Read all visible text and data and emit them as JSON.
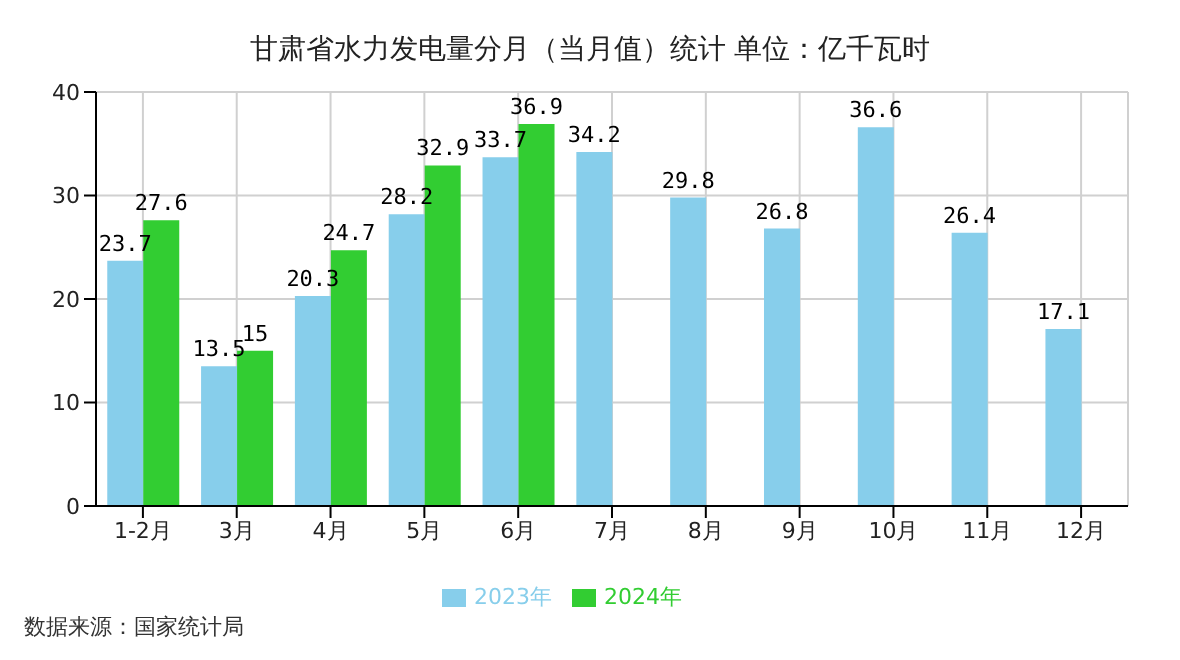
{
  "chart_data": {
    "type": "bar",
    "title": "甘肃省水力发电量分月（当月值）统计 单位：亿千瓦时",
    "categories": [
      "1-2月",
      "3月",
      "4月",
      "5月",
      "6月",
      "7月",
      "8月",
      "9月",
      "10月",
      "11月",
      "12月"
    ],
    "series": [
      {
        "name": "2023年",
        "color": "#87ceeb",
        "values": [
          23.7,
          13.5,
          20.3,
          28.2,
          33.7,
          34.2,
          29.8,
          26.8,
          36.6,
          26.4,
          17.1
        ]
      },
      {
        "name": "2024年",
        "color": "#32cd32",
        "values": [
          27.6,
          15,
          24.7,
          32.9,
          36.9,
          null,
          null,
          null,
          null,
          null,
          null
        ]
      }
    ],
    "ylim": [
      0,
      40
    ],
    "yticks": [
      0,
      10,
      20,
      30,
      40
    ],
    "grid": true,
    "legend": "bottom",
    "data_labels": true,
    "annotations": [
      "数据来源：国家统计局"
    ]
  }
}
